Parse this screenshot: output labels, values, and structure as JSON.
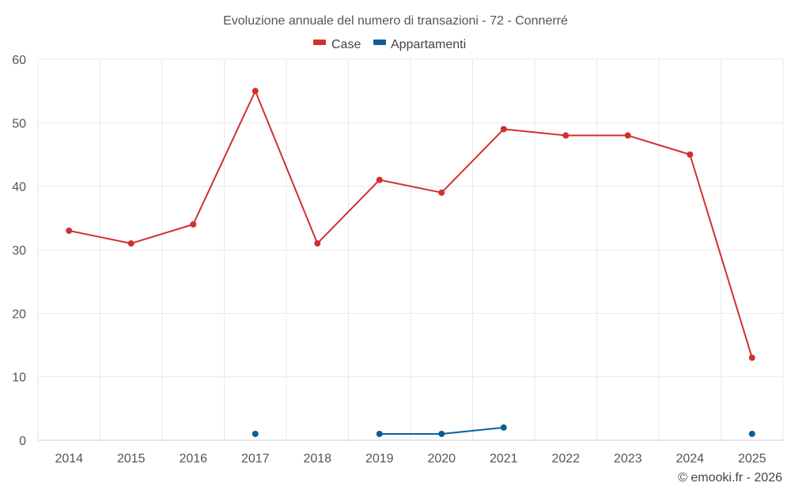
{
  "chart_data": {
    "type": "line",
    "title": "Evoluzione annuale del numero di transazioni - 72 - Connerré",
    "xlabel": "",
    "ylabel": "",
    "categories": [
      "2014",
      "2015",
      "2016",
      "2017",
      "2018",
      "2019",
      "2020",
      "2021",
      "2022",
      "2023",
      "2024",
      "2025"
    ],
    "ylim": [
      0,
      60
    ],
    "yticks": [
      0,
      10,
      20,
      30,
      40,
      50,
      60
    ],
    "grid": true,
    "legend_position": "top-center",
    "series": [
      {
        "name": "Case",
        "color": "#d32f2f",
        "values": [
          33,
          31,
          34,
          55,
          31,
          41,
          39,
          49,
          48,
          48,
          45,
          13
        ]
      },
      {
        "name": "Appartamenti",
        "color": "#0a5f96",
        "values": [
          null,
          null,
          null,
          1,
          null,
          1,
          1,
          2,
          null,
          null,
          null,
          1
        ]
      }
    ],
    "credit": "© emooki.fr - 2026"
  }
}
